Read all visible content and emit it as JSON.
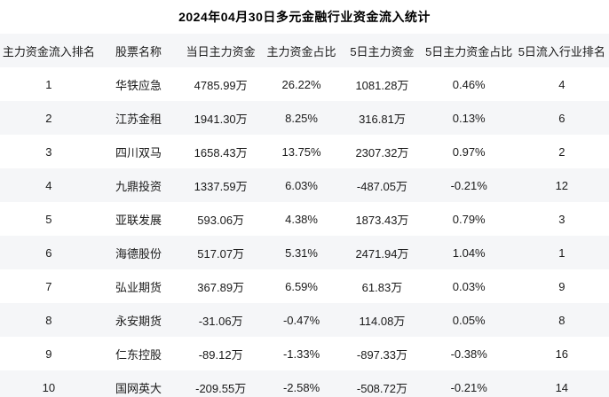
{
  "title": "2024年04月30日多元金融行业资金流入统计",
  "colors": {
    "stripe_bg": "#f5f6f8",
    "row_bg": "#ffffff",
    "text": "#1a1a1a"
  },
  "table": {
    "columns": [
      "主力资金流入排名",
      "股票名称",
      "当日主力资金",
      "主力资金占比",
      "5日主力资金",
      "5日主力资金占比",
      "5日流入行业排名"
    ],
    "rows": [
      [
        "1",
        "华铁应急",
        "4785.99万",
        "26.22%",
        "1081.28万",
        "0.46%",
        "4"
      ],
      [
        "2",
        "江苏金租",
        "1941.30万",
        "8.25%",
        "316.81万",
        "0.13%",
        "6"
      ],
      [
        "3",
        "四川双马",
        "1658.43万",
        "13.75%",
        "2307.32万",
        "0.97%",
        "2"
      ],
      [
        "4",
        "九鼎投资",
        "1337.59万",
        "6.03%",
        "-487.05万",
        "-0.21%",
        "12"
      ],
      [
        "5",
        "亚联发展",
        "593.06万",
        "4.38%",
        "1873.43万",
        "0.79%",
        "3"
      ],
      [
        "6",
        "海德股份",
        "517.07万",
        "5.31%",
        "2471.94万",
        "1.04%",
        "1"
      ],
      [
        "7",
        "弘业期货",
        "367.89万",
        "6.59%",
        "61.83万",
        "0.03%",
        "9"
      ],
      [
        "8",
        "永安期货",
        "-31.06万",
        "-0.47%",
        "114.08万",
        "0.05%",
        "8"
      ],
      [
        "9",
        "仁东控股",
        "-89.12万",
        "-1.33%",
        "-897.33万",
        "-0.38%",
        "16"
      ],
      [
        "10",
        "国网英大",
        "-209.55万",
        "-2.58%",
        "-508.72万",
        "-0.21%",
        "14"
      ]
    ]
  },
  "chart_data": {
    "type": "table",
    "title": "2024年04月30日多元金融行业资金流入统计",
    "columns": [
      "主力资金流入排名",
      "股票名称",
      "当日主力资金",
      "主力资金占比",
      "5日主力资金",
      "5日主力资金占比",
      "5日流入行业排名"
    ],
    "rows": [
      [
        "1",
        "华铁应急",
        "4785.99万",
        "26.22%",
        "1081.28万",
        "0.46%",
        "4"
      ],
      [
        "2",
        "江苏金租",
        "1941.30万",
        "8.25%",
        "316.81万",
        "0.13%",
        "6"
      ],
      [
        "3",
        "四川双马",
        "1658.43万",
        "13.75%",
        "2307.32万",
        "0.97%",
        "2"
      ],
      [
        "4",
        "九鼎投资",
        "1337.59万",
        "6.03%",
        "-487.05万",
        "-0.21%",
        "12"
      ],
      [
        "5",
        "亚联发展",
        "593.06万",
        "4.38%",
        "1873.43万",
        "0.79%",
        "3"
      ],
      [
        "6",
        "海德股份",
        "517.07万",
        "5.31%",
        "2471.94万",
        "1.04%",
        "1"
      ],
      [
        "7",
        "弘业期货",
        "367.89万",
        "6.59%",
        "61.83万",
        "0.03%",
        "9"
      ],
      [
        "8",
        "永安期货",
        "-31.06万",
        "-0.47%",
        "114.08万",
        "0.05%",
        "8"
      ],
      [
        "9",
        "仁东控股",
        "-89.12万",
        "-1.33%",
        "-897.33万",
        "-0.38%",
        "16"
      ],
      [
        "10",
        "国网英大",
        "-209.55万",
        "-2.58%",
        "-508.72万",
        "-0.21%",
        "14"
      ]
    ]
  }
}
